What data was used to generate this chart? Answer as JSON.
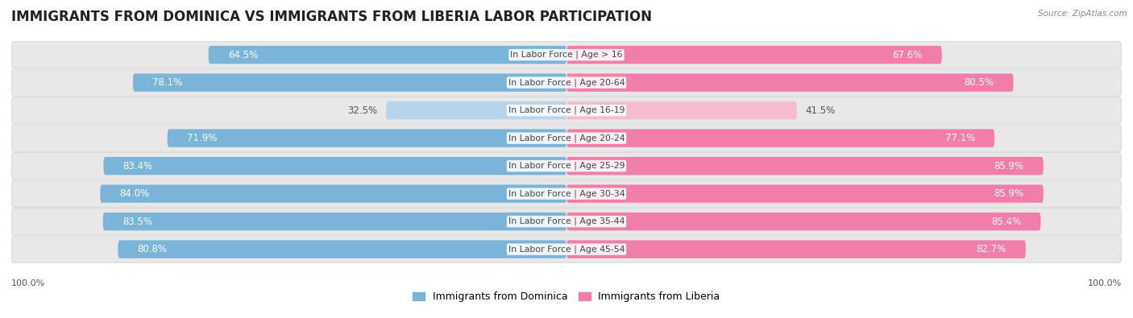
{
  "title": "IMMIGRANTS FROM DOMINICA VS IMMIGRANTS FROM LIBERIA LABOR PARTICIPATION",
  "source": "Source: ZipAtlas.com",
  "categories": [
    "In Labor Force | Age > 16",
    "In Labor Force | Age 20-64",
    "In Labor Force | Age 16-19",
    "In Labor Force | Age 20-24",
    "In Labor Force | Age 25-29",
    "In Labor Force | Age 30-34",
    "In Labor Force | Age 35-44",
    "In Labor Force | Age 45-54"
  ],
  "dominica_values": [
    64.5,
    78.1,
    32.5,
    71.9,
    83.4,
    84.0,
    83.5,
    80.8
  ],
  "liberia_values": [
    67.6,
    80.5,
    41.5,
    77.1,
    85.9,
    85.9,
    85.4,
    82.7
  ],
  "dominica_color": "#7ab4d8",
  "dominica_color_light": "#b8d4ea",
  "liberia_color": "#f07daa",
  "liberia_color_light": "#f5bbd0",
  "row_bg": "#e8e8e8",
  "fig_bg": "#ffffff",
  "max_value": 100.0,
  "legend_label_dominica": "Immigrants from Dominica",
  "legend_label_liberia": "Immigrants from Liberia",
  "title_fontsize": 12,
  "value_fontsize": 8.5,
  "cat_fontsize": 7.8,
  "threshold_light": 50
}
